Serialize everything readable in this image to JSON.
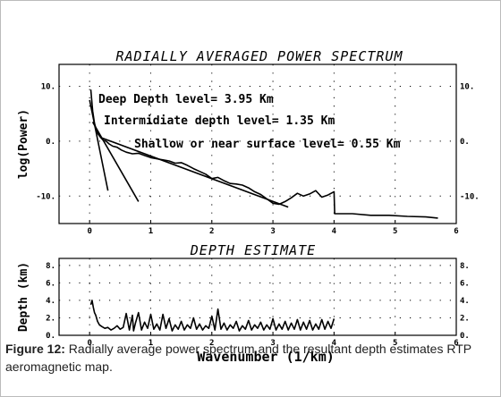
{
  "chart_data": [
    {
      "type": "line",
      "title": "RADIALLY AVERAGED POWER SPECTRUM",
      "xlabel": "",
      "ylabel": "log(Power)",
      "xlim": [
        -0.5,
        6.0
      ],
      "ylim": [
        -15,
        14
      ],
      "xticks": [
        "0",
        "1",
        "2",
        "3",
        "4",
        "5",
        "6"
      ],
      "yticks": [
        {
          "value": 10,
          "label": "10."
        },
        {
          "value": 0,
          "label": "0."
        },
        {
          "value": -10,
          "label": "-10."
        }
      ],
      "grid": "dotted",
      "series": [
        {
          "values_x": [
            0.02,
            0.05,
            0.08,
            0.11,
            0.14,
            0.18,
            0.22,
            0.27,
            0.32,
            0.38,
            0.45,
            0.52,
            0.6,
            0.7,
            0.8,
            0.9,
            1.0,
            1.1,
            1.2,
            1.3,
            1.4,
            1.5,
            1.6,
            1.7,
            1.8,
            1.9,
            2.0,
            2.1,
            2.2,
            2.3,
            2.4,
            2.5,
            2.6,
            2.7,
            2.8,
            2.9,
            3.0,
            3.1,
            3.2,
            3.3,
            3.4,
            3.5,
            3.6,
            3.7,
            3.8,
            3.9,
            4.0,
            4.01,
            4.3,
            4.6,
            4.9,
            5.2,
            5.5,
            5.7
          ],
          "values_y": [
            9.4,
            5.5,
            3.3,
            2.0,
            1.3,
            0.7,
            0.2,
            0.0,
            -0.5,
            -0.9,
            -1.1,
            -1.6,
            -2.0,
            -2.3,
            -2.2,
            -2.6,
            -3.0,
            -3.2,
            -3.4,
            -3.6,
            -4.0,
            -3.9,
            -4.4,
            -5.0,
            -5.5,
            -6.0,
            -6.8,
            -6.6,
            -7.2,
            -7.7,
            -7.8,
            -8.0,
            -8.5,
            -9.2,
            -9.7,
            -10.5,
            -11.3,
            -11.5,
            -11.0,
            -10.3,
            -9.5,
            -10.0,
            -9.6,
            -9.0,
            -10.2,
            -9.8,
            -9.2,
            -13.2,
            -13.2,
            -13.5,
            -13.5,
            -13.7,
            -13.8,
            -14.0
          ]
        }
      ],
      "fit_lines": [
        {
          "name": "deep",
          "x": [
            0.0,
            0.3
          ],
          "y": [
            7.5,
            -9.0
          ]
        },
        {
          "name": "intermediate",
          "x": [
            0.05,
            0.8
          ],
          "y": [
            3.5,
            -11.0
          ]
        },
        {
          "name": "shallow",
          "x": [
            0.2,
            3.25
          ],
          "y": [
            0.6,
            -12.0
          ]
        }
      ],
      "annotations": [
        "Deep Depth level= 3.95 Km",
        "Intermidiate depth level= 1.35 Km",
        "Shallow or near surface level= 0.55 Km"
      ]
    },
    {
      "type": "line",
      "title": "DEPTH ESTIMATE",
      "xlabel": "Wavenumber (1/km)",
      "ylabel": "Depth (km)",
      "xlim": [
        -0.5,
        6.0
      ],
      "ylim": [
        0,
        8.8
      ],
      "xticks": [
        "0",
        "1",
        "2",
        "3",
        "4",
        "5",
        "6"
      ],
      "yticks": [
        {
          "value": 0,
          "label": "0."
        },
        {
          "value": 2,
          "label": "2."
        },
        {
          "value": 4,
          "label": "4."
        },
        {
          "value": 6,
          "label": "6."
        },
        {
          "value": 8,
          "label": "8."
        }
      ],
      "grid": "dotted",
      "series": [
        {
          "values_x": [
            0.02,
            0.04,
            0.06,
            0.08,
            0.1,
            0.13,
            0.16,
            0.2,
            0.25,
            0.3,
            0.35,
            0.4,
            0.45,
            0.5,
            0.55,
            0.6,
            0.65,
            0.7,
            0.72,
            0.75,
            0.8,
            0.85,
            0.9,
            0.95,
            1.0,
            1.05,
            1.1,
            1.15,
            1.2,
            1.25,
            1.3,
            1.35,
            1.4,
            1.45,
            1.5,
            1.55,
            1.6,
            1.65,
            1.7,
            1.75,
            1.8,
            1.85,
            1.9,
            1.95,
            2.0,
            2.05,
            2.1,
            2.15,
            2.2,
            2.25,
            2.3,
            2.35,
            2.4,
            2.45,
            2.5,
            2.55,
            2.6,
            2.65,
            2.7,
            2.75,
            2.8,
            2.85,
            2.9,
            2.95,
            3.0,
            3.05,
            3.1,
            3.15,
            3.2,
            3.25,
            3.3,
            3.35,
            3.4,
            3.45,
            3.5,
            3.55,
            3.6,
            3.65,
            3.7,
            3.75,
            3.8,
            3.85,
            3.9,
            3.95,
            4.0
          ],
          "values_y": [
            3.5,
            4.0,
            3.2,
            2.6,
            2.3,
            1.6,
            1.2,
            1.0,
            0.8,
            0.9,
            0.6,
            0.8,
            1.1,
            0.7,
            0.9,
            2.5,
            0.6,
            2.3,
            0.5,
            1.4,
            2.6,
            0.6,
            1.5,
            0.8,
            2.4,
            0.7,
            1.3,
            0.6,
            2.4,
            0.8,
            1.9,
            0.5,
            1.2,
            0.7,
            1.6,
            0.6,
            1.2,
            0.8,
            2.0,
            0.7,
            1.3,
            0.6,
            1.1,
            0.8,
            2.2,
            0.6,
            3.0,
            0.7,
            1.4,
            0.6,
            1.2,
            0.8,
            1.6,
            0.5,
            1.1,
            0.7,
            1.7,
            0.6,
            1.2,
            0.8,
            1.5,
            0.6,
            1.2,
            0.7,
            1.9,
            0.6,
            1.3,
            0.7,
            1.6,
            0.6,
            1.4,
            0.7,
            1.8,
            0.6,
            1.5,
            0.7,
            1.7,
            0.6,
            1.3,
            0.7,
            1.8,
            0.7,
            1.6,
            0.8,
            1.9
          ]
        }
      ]
    }
  ],
  "caption": {
    "label": "Figure 12:",
    "text": " Radially average power spectrum and the resultant depth estimates RTP aeromagnetic map."
  }
}
